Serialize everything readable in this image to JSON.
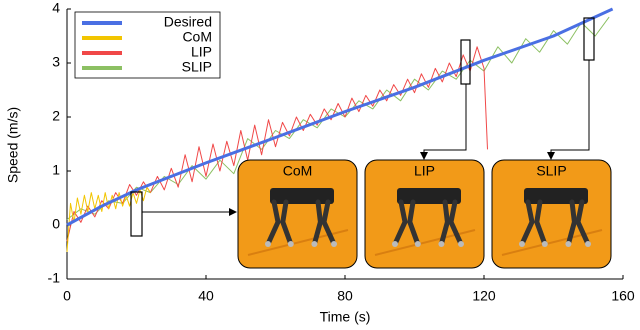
{
  "chart_data": {
    "type": "line",
    "xlabel": "Time (s)",
    "ylabel": "Speed (m/s)",
    "xlim": [
      0,
      160
    ],
    "xticks": [
      0,
      40,
      80,
      120,
      160
    ],
    "ylim": [
      -1,
      4
    ],
    "yticks": [
      -1,
      0,
      1,
      2,
      3,
      4
    ],
    "grid": false,
    "legend": "upper left",
    "series": [
      {
        "name": "Desired",
        "color": "#4a6fe3",
        "width": 3,
        "x": [
          0,
          10,
          20,
          40,
          60,
          80,
          100,
          120,
          140,
          157
        ],
        "values": [
          0,
          0.35,
          0.65,
          1.15,
          1.62,
          2.1,
          2.55,
          3.05,
          3.5,
          4
        ]
      },
      {
        "name": "CoM",
        "color": "#f2c500",
        "width": 1,
        "x": [
          0,
          1,
          2,
          3,
          4,
          5,
          6,
          7,
          8,
          9,
          10,
          11,
          12,
          13,
          14,
          15,
          16,
          17,
          18,
          19,
          20,
          21,
          22,
          23,
          24
        ],
        "values": [
          -0.5,
          0.4,
          0.05,
          0.5,
          0.2,
          0.55,
          0.25,
          0.6,
          0.3,
          0.55,
          0.25,
          0.6,
          0.3,
          0.55,
          0.3,
          0.6,
          0.35,
          0.55,
          0.35,
          0.6,
          0.4,
          0.65,
          0.45,
          0.7,
          0.6
        ]
      },
      {
        "name": "LIP",
        "color": "#f04848",
        "width": 1,
        "x": [
          0,
          2,
          4,
          6,
          8,
          10,
          12,
          14,
          16,
          18,
          20,
          22,
          24,
          26,
          28,
          30,
          32,
          34,
          36,
          38,
          40,
          42,
          44,
          46,
          48,
          50,
          52,
          54,
          56,
          58,
          60,
          62,
          64,
          66,
          68,
          70,
          72,
          74,
          76,
          78,
          80,
          82,
          84,
          86,
          88,
          90,
          92,
          94,
          96,
          98,
          100,
          102,
          104,
          106,
          108,
          110,
          112,
          114,
          116,
          118,
          120,
          121
        ],
        "values": [
          -0.3,
          0.25,
          0.05,
          0.35,
          0.15,
          0.45,
          0.3,
          0.6,
          0.4,
          0.75,
          0.55,
          0.8,
          0.6,
          0.9,
          0.65,
          1.05,
          0.7,
          1.3,
          0.8,
          1.45,
          0.9,
          1.5,
          1.0,
          1.55,
          1.1,
          1.75,
          1.2,
          1.85,
          1.3,
          1.95,
          1.45,
          1.9,
          1.65,
          2.0,
          1.75,
          2.05,
          1.85,
          2.15,
          1.95,
          2.25,
          2.0,
          2.35,
          2.1,
          2.4,
          2.2,
          2.5,
          2.3,
          2.6,
          2.4,
          2.7,
          2.45,
          2.8,
          2.55,
          2.9,
          2.65,
          3.0,
          2.75,
          3.15,
          2.85,
          3.3,
          2.9,
          1.4
        ]
      },
      {
        "name": "SLIP",
        "color": "#8cc063",
        "width": 1,
        "x": [
          0,
          4,
          8,
          12,
          16,
          20,
          24,
          28,
          32,
          36,
          40,
          44,
          48,
          52,
          56,
          60,
          64,
          68,
          72,
          76,
          80,
          84,
          88,
          92,
          96,
          100,
          104,
          108,
          112,
          116,
          120,
          124,
          128,
          132,
          136,
          140,
          144,
          148,
          152,
          156
        ],
        "values": [
          0.1,
          0.3,
          0.2,
          0.45,
          0.4,
          0.7,
          0.6,
          0.9,
          0.75,
          1.1,
          0.85,
          1.2,
          0.95,
          1.6,
          1.4,
          1.75,
          1.6,
          1.95,
          1.8,
          2.15,
          2.0,
          2.3,
          2.15,
          2.5,
          2.3,
          2.7,
          2.5,
          2.85,
          2.7,
          3.05,
          2.85,
          3.3,
          3.0,
          3.45,
          3.2,
          3.6,
          3.35,
          3.75,
          3.5,
          3.85
        ]
      }
    ],
    "draw_order": [
      3,
      2,
      1,
      0
    ],
    "annotations": [
      "CoM",
      "LIP",
      "SLIP"
    ]
  }
}
